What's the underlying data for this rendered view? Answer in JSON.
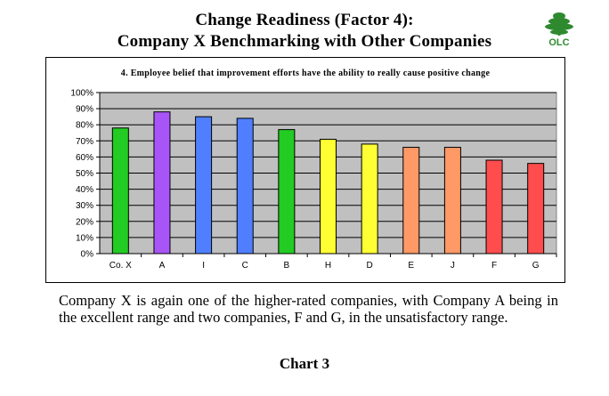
{
  "header": {
    "title_line1": "Change Readiness (Factor 4):",
    "title_line2": "Company X Benchmarking with Other Companies",
    "logo_text": "OLC"
  },
  "chart_data": {
    "type": "bar",
    "title": "4.  Employee belief that improvement efforts have the ability to really cause positive change",
    "categories": [
      "Co. X",
      "A",
      "I",
      "C",
      "B",
      "H",
      "D",
      "E",
      "J",
      "F",
      "G"
    ],
    "values": [
      78,
      88,
      85,
      84,
      77,
      71,
      68,
      66,
      66,
      58,
      56
    ],
    "bar_colors": [
      "#22cc22",
      "#a855f7",
      "#4f7fff",
      "#4f7fff",
      "#22cc22",
      "#ffff33",
      "#ffff33",
      "#ff9966",
      "#ff9966",
      "#ff4d4d",
      "#ff4d4d"
    ],
    "ylim": [
      0,
      100
    ],
    "yticks": [
      0,
      10,
      20,
      30,
      40,
      50,
      60,
      70,
      80,
      90,
      100
    ],
    "ytick_format": "%",
    "grid": true,
    "plot_background": "#c0c0c0",
    "xlabel": "",
    "ylabel": ""
  },
  "caption": "Company X is again one of the higher-rated companies, with Company A being in the excellent range and two companies, F and G, in the unsatisfactory range.",
  "chart_label": "Chart 3"
}
